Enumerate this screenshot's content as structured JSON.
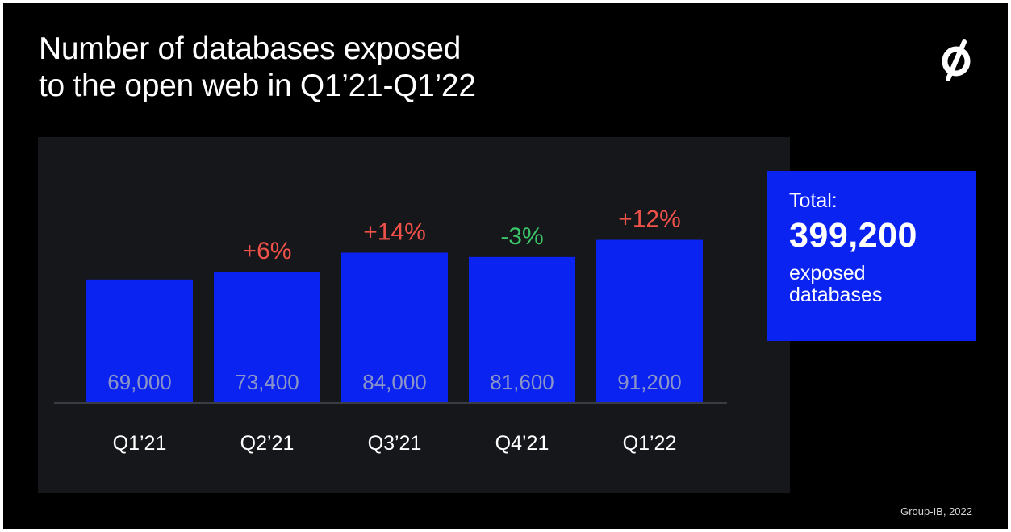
{
  "title_lines": [
    "Number of databases exposed",
    "to the open web in Q1’21-Q1’22"
  ],
  "logo_icon": "group-ib-logo-icon",
  "total": {
    "label": "Total:",
    "value": "399,200",
    "description": "exposed databases"
  },
  "source": "Group-IB, 2022",
  "colors": {
    "background": "#000000",
    "panel": "#16171b",
    "bar": "#0a23f0",
    "increase": "#f0524a",
    "decrease": "#3cc86a",
    "value_label": "#8a94c8",
    "axis": "#3a3c44"
  },
  "chart_data": {
    "type": "bar",
    "title": "Number of databases exposed to the open web in Q1’21-Q1’22",
    "xlabel": "",
    "ylabel": "",
    "categories": [
      "Q1’21",
      "Q2’21",
      "Q3’21",
      "Q4’21",
      "Q1’22"
    ],
    "values": [
      69000,
      73400,
      84000,
      81600,
      91200
    ],
    "value_labels": [
      "69,000",
      "73,400",
      "84,000",
      "81,600",
      "91,200"
    ],
    "changes": [
      {
        "label": "",
        "direction": "none"
      },
      {
        "label": "+6%",
        "direction": "up"
      },
      {
        "label": "+14%",
        "direction": "up"
      },
      {
        "label": "-3%",
        "direction": "down"
      },
      {
        "label": "+12%",
        "direction": "up"
      }
    ],
    "grid": false,
    "legend": "none"
  }
}
